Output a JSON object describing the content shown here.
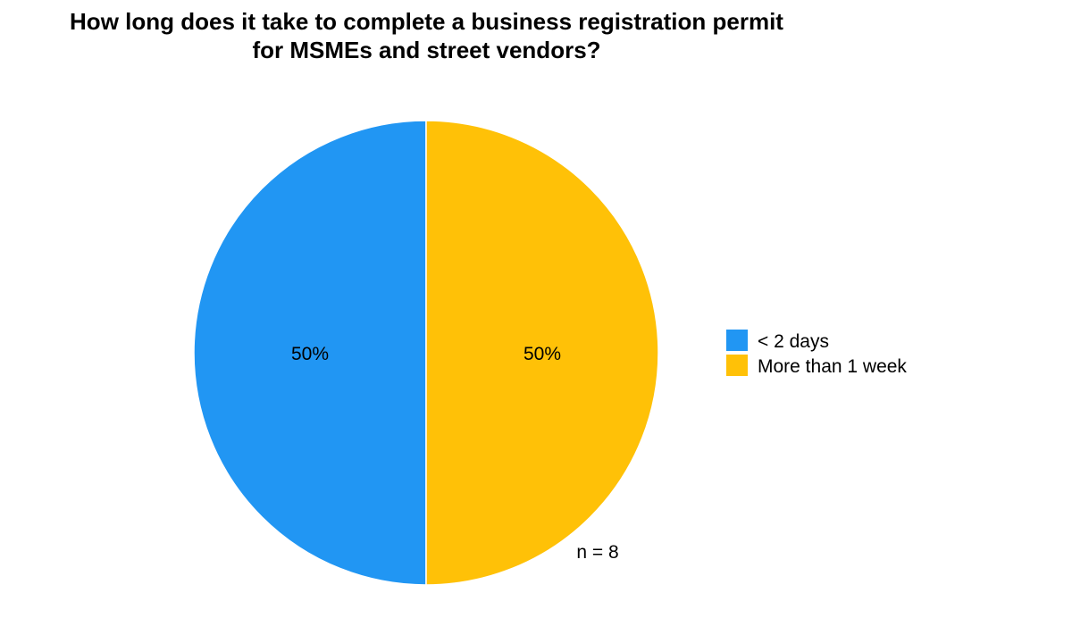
{
  "chart_data": {
    "type": "pie",
    "title_lines": [
      "How long does it take to complete a business registration permit",
      "for MSMEs and street vendors?"
    ],
    "slices": [
      {
        "label": "< 2 days",
        "value": 50,
        "display": "50%",
        "color": "#2196F3"
      },
      {
        "label": "More than 1 week",
        "value": 50,
        "display": "50%",
        "color": "#FFC107"
      }
    ],
    "legend_position": "right",
    "note": "n = 8"
  }
}
